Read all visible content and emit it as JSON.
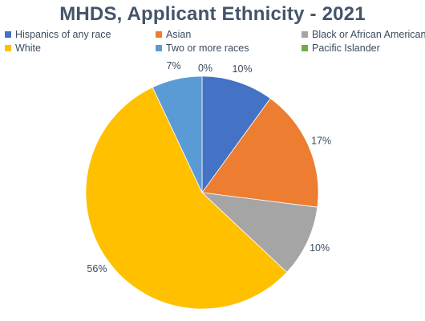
{
  "chart_data": {
    "type": "pie",
    "title": "MHDS, Applicant Ethnicity - 2021",
    "categories": [
      "Hispanics of any race",
      "Asian",
      "Black or African American",
      "White",
      "Two or more races",
      "Pacific Islander"
    ],
    "values": [
      10,
      17,
      10,
      56,
      7,
      0
    ],
    "labels": [
      "10%",
      "17%",
      "10%",
      "56%",
      "7%",
      "0%"
    ],
    "colors": [
      "#4472c4",
      "#ed7d31",
      "#a5a5a5",
      "#ffc000",
      "#5b9bd5",
      "#70ad47"
    ],
    "legend_position": "top",
    "start_angle": "12 o'clock, clockwise"
  }
}
